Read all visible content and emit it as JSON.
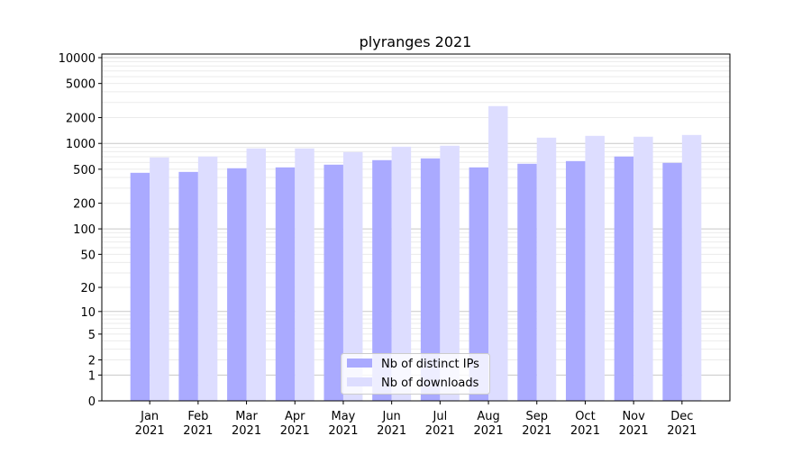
{
  "chart_data": {
    "type": "bar",
    "title": "plyranges 2021",
    "xlabel": "",
    "ylabel": "",
    "yscale": "log10(y+1)",
    "ylim": [
      0,
      10000
    ],
    "yticks": [
      0,
      1,
      2,
      5,
      10,
      20,
      50,
      100,
      200,
      500,
      1000,
      2000,
      5000,
      10000
    ],
    "grid": true,
    "legend_position": "bottom-center",
    "categories": [
      "Jan\n2021",
      "Feb\n2021",
      "Mar\n2021",
      "Apr\n2021",
      "May\n2021",
      "Jun\n2021",
      "Jul\n2021",
      "Aug\n2021",
      "Sep\n2021",
      "Oct\n2021",
      "Nov\n2021",
      "Dec\n2021"
    ],
    "series": [
      {
        "name": "Nb of distinct IPs",
        "color": "#aaaaff",
        "values": [
          454,
          465,
          513,
          525,
          565,
          638,
          669,
          525,
          579,
          622,
          703,
          593
        ]
      },
      {
        "name": "Nb of downloads",
        "color": "#ddddff",
        "values": [
          686,
          703,
          873,
          873,
          793,
          916,
          939,
          2722,
          1167,
          1225,
          1197,
          1255
        ]
      }
    ]
  }
}
